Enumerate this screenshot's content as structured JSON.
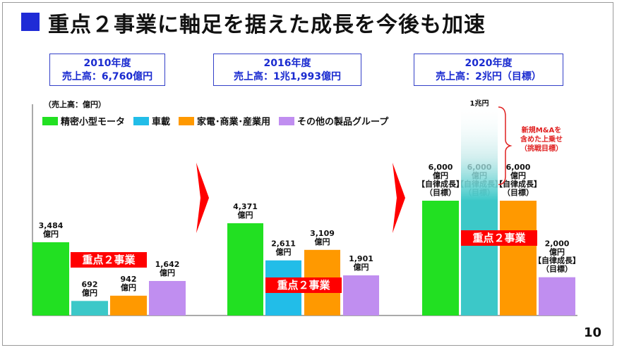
{
  "title": "重点２事業に軸足を据えた成長を今後も加速",
  "page_number": "10",
  "unit_label": "（売上高：億円）",
  "legend": [
    {
      "label": "精密小型モータ",
      "color": "#22e022"
    },
    {
      "label": "車載",
      "color": "#22bde8"
    },
    {
      "label": "家電･商業･産業用",
      "color": "#ff9900"
    },
    {
      "label": "その他の製品グループ",
      "color": "#c08ef0"
    }
  ],
  "year_boxes": [
    {
      "year": "2010年度",
      "sales": "売上高：6,760億円"
    },
    {
      "year": "2016年度",
      "sales": "売上高：1兆1,993億円"
    },
    {
      "year": "2020年度",
      "sales": "売上高：2兆円（目標）"
    }
  ],
  "focus_label": "重点２事業",
  "ma_label": "1兆円",
  "ma_note": [
    "新規M&Aを",
    "含めた上乗せ",
    "（挑戦目標）"
  ],
  "chart_data": {
    "type": "bar",
    "categories": [
      "2010年度",
      "2016年度",
      "2020年度"
    ],
    "series": [
      {
        "name": "精密小型モータ",
        "values": [
          3484,
          4371,
          6000
        ],
        "labels": [
          "3,484\n億円",
          "4,371\n億円",
          "6,000\n億円\n【自律成長】\n（目標）"
        ]
      },
      {
        "name": "車載",
        "values": [
          692,
          2611,
          6000
        ],
        "labels": [
          "692\n億円",
          "2,611\n億円",
          "6,000\n億円\n【自律成長】\n（目標）"
        ]
      },
      {
        "name": "家電･商業･産業用",
        "values": [
          942,
          3109,
          6000
        ],
        "labels": [
          "942\n億円",
          "3,109\n億円",
          "6,000\n億円\n【自律成長】\n（目標）"
        ]
      },
      {
        "name": "その他の製品グループ",
        "values": [
          1642,
          1901,
          2000
        ],
        "labels": [
          "1,642\n億円",
          "1,901\n億円",
          "2,000\n億円\n【自律成長】\n（目標）"
        ]
      }
    ],
    "ma_addition": 10000,
    "ylim": [
      0,
      10000
    ],
    "colors": [
      "#22e022",
      "#3cc8c8",
      "#ff9900",
      "#c08ef0"
    ]
  }
}
